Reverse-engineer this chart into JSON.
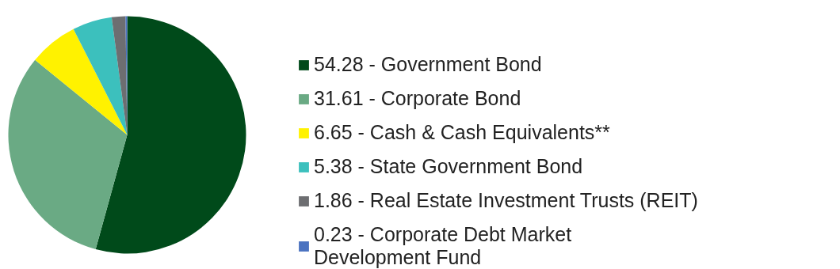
{
  "chart_data": {
    "type": "pie",
    "categories": [
      "54.28 - Government Bond",
      "31.61 - Corporate Bond",
      "6.65 - Cash & Cash Equivalents**",
      "5.38 - State Government Bond",
      "1.86 - Real Estate Investment Trusts (REIT)",
      "0.23 - Corporate Debt Market\nDevelopment Fund"
    ],
    "values": [
      54.28,
      31.61,
      6.65,
      5.38,
      1.86,
      0.23
    ],
    "colors": [
      "#004a1a",
      "#6aaa84",
      "#fff200",
      "#3cc0bd",
      "#6d6e71",
      "#4a72c0"
    ],
    "legend": "right"
  }
}
